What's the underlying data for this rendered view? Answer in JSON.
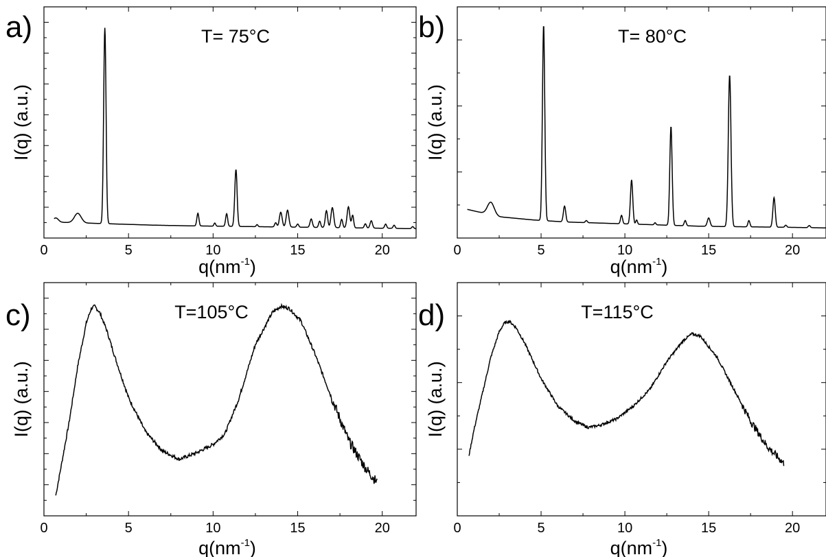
{
  "chart_data": [
    {
      "type": "line",
      "panel_label": "a)",
      "title": "T= 75°C",
      "xlabel": {
        "base": "q(nm",
        "sup": "-1",
        "close": ")"
      },
      "ylabel": "I(q) (a.u.)",
      "xlim": [
        0,
        22
      ],
      "xticks": [
        "0",
        "5",
        "10",
        "15",
        "20"
      ],
      "xtick_values": [
        0,
        5,
        10,
        15,
        20
      ],
      "ylim": [
        0,
        1
      ],
      "yticks_unlabeled": 15,
      "grid": false,
      "background": [
        0.05,
        0.045,
        0.04,
        0.035,
        0.032,
        0.03,
        0.028,
        0.026,
        0.024,
        0.022,
        0.02,
        0.018
      ],
      "background_x": [
        0.5,
        2.5,
        4.5,
        6.5,
        8.5,
        10.5,
        12.5,
        14.5,
        16.5,
        18.5,
        20.5,
        22
      ],
      "peaks": [
        {
          "q": 0.7,
          "h": 0.02,
          "w": 0.15
        },
        {
          "q": 2.0,
          "h": 0.045,
          "w": 0.2
        },
        {
          "q": 3.6,
          "h": 0.93,
          "w": 0.07
        },
        {
          "q": 9.1,
          "h": 0.06,
          "w": 0.06
        },
        {
          "q": 10.1,
          "h": 0.015,
          "w": 0.05
        },
        {
          "q": 10.8,
          "h": 0.06,
          "w": 0.06
        },
        {
          "q": 11.35,
          "h": 0.27,
          "w": 0.07
        },
        {
          "q": 12.6,
          "h": 0.01,
          "w": 0.05
        },
        {
          "q": 13.7,
          "h": 0.02,
          "w": 0.06
        },
        {
          "q": 14.0,
          "h": 0.07,
          "w": 0.08
        },
        {
          "q": 14.4,
          "h": 0.08,
          "w": 0.08
        },
        {
          "q": 15.0,
          "h": 0.015,
          "w": 0.06
        },
        {
          "q": 15.8,
          "h": 0.04,
          "w": 0.07
        },
        {
          "q": 16.3,
          "h": 0.03,
          "w": 0.06
        },
        {
          "q": 16.7,
          "h": 0.08,
          "w": 0.07
        },
        {
          "q": 17.05,
          "h": 0.095,
          "w": 0.08
        },
        {
          "q": 17.6,
          "h": 0.04,
          "w": 0.06
        },
        {
          "q": 18.0,
          "h": 0.1,
          "w": 0.08
        },
        {
          "q": 18.25,
          "h": 0.06,
          "w": 0.06
        },
        {
          "q": 19.0,
          "h": 0.02,
          "w": 0.06
        },
        {
          "q": 19.35,
          "h": 0.035,
          "w": 0.07
        },
        {
          "q": 20.2,
          "h": 0.02,
          "w": 0.06
        },
        {
          "q": 20.7,
          "h": 0.015,
          "w": 0.06
        },
        {
          "q": 21.8,
          "h": 0.01,
          "w": 0.06
        }
      ],
      "x_range": [
        0.6,
        22
      ]
    },
    {
      "type": "line",
      "panel_label": "b)",
      "title": "T= 80°C",
      "xlabel": {
        "base": "q(nm",
        "sup": "-1",
        "close": ")"
      },
      "ylabel": "I(q) (a.u.)",
      "xlim": [
        0,
        22
      ],
      "xticks": [
        "0",
        "5",
        "10",
        "15",
        "20"
      ],
      "xtick_values": [
        0,
        5,
        10,
        15,
        20
      ],
      "ylim": [
        0,
        1
      ],
      "yticks_unlabeled": 7,
      "grid": false,
      "background": [
        0.11,
        0.075,
        0.06,
        0.05,
        0.045,
        0.04,
        0.035,
        0.03,
        0.028,
        0.026,
        0.024,
        0.022
      ],
      "background_x": [
        0.6,
        2.5,
        4.5,
        6.5,
        8.5,
        10.5,
        12.5,
        14.5,
        16.5,
        18.5,
        20.5,
        22
      ],
      "peaks": [
        {
          "q": 2.0,
          "h": 0.06,
          "w": 0.2
        },
        {
          "q": 5.15,
          "h": 0.93,
          "w": 0.07
        },
        {
          "q": 6.4,
          "h": 0.075,
          "w": 0.07
        },
        {
          "q": 7.7,
          "h": 0.01,
          "w": 0.06
        },
        {
          "q": 9.8,
          "h": 0.04,
          "w": 0.06
        },
        {
          "q": 10.4,
          "h": 0.21,
          "w": 0.07
        },
        {
          "q": 10.7,
          "h": 0.02,
          "w": 0.05
        },
        {
          "q": 11.8,
          "h": 0.01,
          "w": 0.05
        },
        {
          "q": 12.75,
          "h": 0.47,
          "w": 0.07
        },
        {
          "q": 13.6,
          "h": 0.025,
          "w": 0.06
        },
        {
          "q": 15.0,
          "h": 0.04,
          "w": 0.08
        },
        {
          "q": 16.25,
          "h": 0.72,
          "w": 0.08
        },
        {
          "q": 17.4,
          "h": 0.03,
          "w": 0.06
        },
        {
          "q": 18.9,
          "h": 0.14,
          "w": 0.07
        },
        {
          "q": 19.6,
          "h": 0.01,
          "w": 0.06
        },
        {
          "q": 21.0,
          "h": 0.01,
          "w": 0.06
        }
      ],
      "x_range": [
        0.6,
        22
      ]
    },
    {
      "type": "line",
      "panel_label": "c)",
      "title": "T=105°C",
      "xlabel": {
        "base": "q(nm",
        "sup": "-1",
        "close": ")"
      },
      "ylabel": "I(q) (a.u.)",
      "xlim": [
        0,
        22
      ],
      "xticks": [
        "0",
        "5",
        "10",
        "15",
        "20"
      ],
      "xtick_values": [
        0,
        5,
        10,
        15,
        20
      ],
      "ylim": [
        0,
        1
      ],
      "yticks_unlabeled": 15,
      "grid": false,
      "x": [
        0.7,
        1.0,
        1.5,
        2.0,
        2.5,
        2.8,
        3.0,
        3.3,
        3.7,
        4.2,
        5.0,
        6.0,
        7.0,
        8.0,
        9.0,
        10.0,
        10.7,
        11.5,
        12.5,
        13.5,
        14.0,
        14.5,
        15.2,
        16.0,
        17.0,
        18.0,
        19.0,
        19.7
      ],
      "y": [
        0.07,
        0.2,
        0.42,
        0.68,
        0.88,
        0.95,
        0.96,
        0.93,
        0.85,
        0.72,
        0.53,
        0.37,
        0.28,
        0.24,
        0.27,
        0.31,
        0.36,
        0.52,
        0.78,
        0.93,
        0.96,
        0.95,
        0.89,
        0.74,
        0.53,
        0.33,
        0.2,
        0.13
      ],
      "noise": 0.008
    },
    {
      "type": "line",
      "panel_label": "d)",
      "title": "T=115°C",
      "xlabel": {
        "base": "q(nm",
        "sup": "-1",
        "close": ")"
      },
      "ylabel": "I(q) (a.u.)",
      "xlim": [
        0,
        22
      ],
      "xticks": [
        "0",
        "5",
        "10",
        "15",
        "20"
      ],
      "xtick_values": [
        0,
        5,
        10,
        15,
        20
      ],
      "ylim": [
        0,
        1
      ],
      "yticks_unlabeled": 7,
      "grid": false,
      "x": [
        0.7,
        1.0,
        1.5,
        2.0,
        2.5,
        2.8,
        3.1,
        3.5,
        4.0,
        5.0,
        6.0,
        7.0,
        7.8,
        8.5,
        9.5,
        10.5,
        11.5,
        12.5,
        13.5,
        14.0,
        14.5,
        15.5,
        16.5,
        17.5,
        18.5,
        19.5
      ],
      "y": [
        0.26,
        0.38,
        0.55,
        0.72,
        0.84,
        0.88,
        0.89,
        0.86,
        0.79,
        0.62,
        0.49,
        0.42,
        0.39,
        0.4,
        0.43,
        0.49,
        0.57,
        0.7,
        0.8,
        0.83,
        0.82,
        0.72,
        0.57,
        0.42,
        0.3,
        0.22
      ],
      "noise": 0.006
    }
  ]
}
